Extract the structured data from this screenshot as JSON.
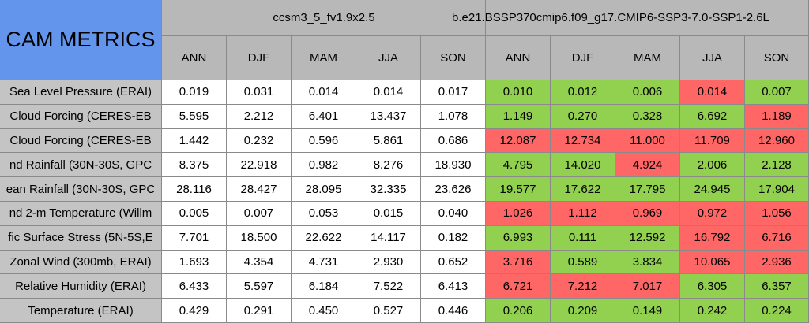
{
  "header": {
    "title": "CAM METRICS",
    "groups": [
      {
        "name": "ccsm3_5_fv1.9x2.5",
        "columns": [
          "ANN",
          "DJF",
          "MAM",
          "JJA",
          "SON"
        ]
      },
      {
        "name": "b.e21.BSSP370cmip6.f09_g17.CMIP6-SSP3-7.0-SSP1-2.6L",
        "columns": [
          "ANN",
          "DJF",
          "MAM",
          "JJA",
          "SON"
        ]
      }
    ]
  },
  "colors": {
    "title": "#6495ed",
    "header": "#b8b8b8",
    "label": "#c4c4c4",
    "good": "#92d050",
    "bad": "#ff6666"
  },
  "table": {
    "rows": [
      {
        "label": "Sea Level Pressure (ERAI)",
        "values": [
          "0.019",
          "0.031",
          "0.014",
          "0.014",
          "0.017",
          "0.010",
          "0.012",
          "0.006",
          "0.014",
          "0.007"
        ],
        "status": [
          "good",
          "good",
          "good",
          "bad",
          "good"
        ]
      },
      {
        "label": "Cloud Forcing (CERES-EB",
        "values": [
          "5.595",
          "2.212",
          "6.401",
          "13.437",
          "1.078",
          "1.149",
          "0.270",
          "0.328",
          "6.692",
          "1.189"
        ],
        "status": [
          "good",
          "good",
          "good",
          "good",
          "bad"
        ]
      },
      {
        "label": "Cloud Forcing (CERES-EB",
        "values": [
          "1.442",
          "0.232",
          "0.596",
          "5.861",
          "0.686",
          "12.087",
          "12.734",
          "11.000",
          "11.709",
          "12.960"
        ],
        "status": [
          "bad",
          "bad",
          "bad",
          "bad",
          "bad"
        ]
      },
      {
        "label": "nd Rainfall (30N-30S, GPC",
        "values": [
          "8.375",
          "22.918",
          "0.982",
          "8.276",
          "18.930",
          "4.795",
          "14.020",
          "4.924",
          "2.006",
          "2.128"
        ],
        "status": [
          "good",
          "good",
          "bad",
          "good",
          "good"
        ]
      },
      {
        "label": "ean Rainfall (30N-30S, GPC",
        "values": [
          "28.116",
          "28.427",
          "28.095",
          "32.335",
          "23.626",
          "19.577",
          "17.622",
          "17.795",
          "24.945",
          "17.904"
        ],
        "status": [
          "good",
          "good",
          "good",
          "good",
          "good"
        ]
      },
      {
        "label": "nd 2-m Temperature (Willm",
        "values": [
          "0.005",
          "0.007",
          "0.053",
          "0.015",
          "0.040",
          "1.026",
          "1.112",
          "0.969",
          "0.972",
          "1.056"
        ],
        "status": [
          "bad",
          "bad",
          "bad",
          "bad",
          "bad"
        ]
      },
      {
        "label": "fic Surface Stress (5N-5S,E",
        "values": [
          "7.701",
          "18.500",
          "22.622",
          "14.117",
          "0.182",
          "6.993",
          "0.111",
          "12.592",
          "16.792",
          "6.716"
        ],
        "status": [
          "good",
          "good",
          "good",
          "bad",
          "bad"
        ]
      },
      {
        "label": "Zonal Wind (300mb, ERAI)",
        "values": [
          "1.693",
          "4.354",
          "4.731",
          "2.930",
          "0.652",
          "3.716",
          "0.589",
          "3.834",
          "10.065",
          "2.936"
        ],
        "status": [
          "bad",
          "good",
          "good",
          "bad",
          "bad"
        ]
      },
      {
        "label": "Relative Humidity (ERAI)",
        "values": [
          "6.433",
          "5.597",
          "6.184",
          "7.522",
          "6.413",
          "6.721",
          "7.212",
          "7.017",
          "6.305",
          "6.357"
        ],
        "status": [
          "bad",
          "bad",
          "bad",
          "good",
          "good"
        ]
      },
      {
        "label": "Temperature (ERAI)",
        "values": [
          "0.429",
          "0.291",
          "0.450",
          "0.527",
          "0.446",
          "0.206",
          "0.209",
          "0.149",
          "0.242",
          "0.224"
        ],
        "status": [
          "good",
          "good",
          "good",
          "good",
          "good"
        ]
      }
    ]
  }
}
